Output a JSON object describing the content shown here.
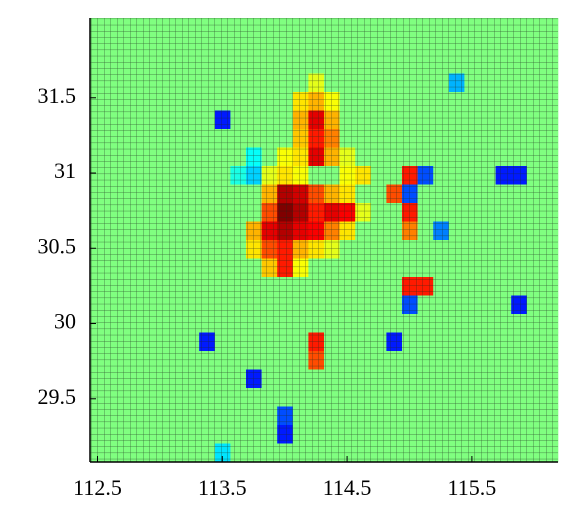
{
  "chart_data": {
    "type": "heatmap",
    "xlim": [
      112.44,
      116.19
    ],
    "ylim": [
      29.08,
      32.03
    ],
    "zlim": [
      0,
      1
    ],
    "xticks": [
      112.5,
      113.5,
      114.5,
      115.5
    ],
    "yticks": [
      29.5,
      30,
      30.5,
      31,
      31.5
    ],
    "z": [
      [
        0.5,
        0.5,
        0.5,
        0.5,
        0.5,
        0.5,
        0.5,
        0.5,
        0.5,
        0.5,
        0.5,
        0.5,
        0.5,
        0.5,
        0.5,
        0.5,
        0.5,
        0.5,
        0.5,
        0.5,
        0.5,
        0.5,
        0.5,
        0.5,
        0.5,
        0.5,
        0.5,
        0.5,
        0.5,
        0.5
      ],
      [
        0.5,
        0.5,
        0.5,
        0.5,
        0.5,
        0.5,
        0.5,
        0.5,
        0.5,
        0.5,
        0.5,
        0.5,
        0.5,
        0.5,
        0.5,
        0.5,
        0.5,
        0.5,
        0.5,
        0.5,
        0.5,
        0.5,
        0.5,
        0.5,
        0.5,
        0.5,
        0.5,
        0.5,
        0.5,
        0.5
      ],
      [
        0.5,
        0.5,
        0.5,
        0.5,
        0.5,
        0.5,
        0.5,
        0.5,
        0.5,
        0.5,
        0.5,
        0.5,
        0.5,
        0.5,
        0.5,
        0.5,
        0.5,
        0.5,
        0.5,
        0.5,
        0.5,
        0.5,
        0.5,
        0.5,
        0.5,
        0.5,
        0.5,
        0.5,
        0.5,
        0.5
      ],
      [
        0.5,
        0.5,
        0.5,
        0.5,
        0.5,
        0.5,
        0.5,
        0.5,
        0.5,
        0.5,
        0.5,
        0.5,
        0.5,
        0.5,
        0.6,
        0.5,
        0.5,
        0.5,
        0.5,
        0.5,
        0.5,
        0.5,
        0.5,
        0.3,
        0.5,
        0.5,
        0.5,
        0.5,
        0.5,
        0.5
      ],
      [
        0.5,
        0.5,
        0.5,
        0.5,
        0.5,
        0.5,
        0.5,
        0.5,
        0.5,
        0.5,
        0.5,
        0.5,
        0.5,
        0.65,
        0.7,
        0.62,
        0.5,
        0.5,
        0.5,
        0.5,
        0.5,
        0.5,
        0.5,
        0.5,
        0.5,
        0.5,
        0.5,
        0.5,
        0.5,
        0.5
      ],
      [
        0.5,
        0.5,
        0.5,
        0.5,
        0.5,
        0.5,
        0.5,
        0.5,
        0.15,
        0.5,
        0.5,
        0.5,
        0.5,
        0.7,
        0.9,
        0.7,
        0.5,
        0.5,
        0.5,
        0.5,
        0.5,
        0.5,
        0.5,
        0.5,
        0.5,
        0.5,
        0.5,
        0.5,
        0.5,
        0.5
      ],
      [
        0.5,
        0.5,
        0.5,
        0.5,
        0.5,
        0.5,
        0.5,
        0.5,
        0.5,
        0.5,
        0.5,
        0.5,
        0.5,
        0.68,
        0.85,
        0.75,
        0.5,
        0.5,
        0.5,
        0.5,
        0.5,
        0.5,
        0.5,
        0.5,
        0.5,
        0.5,
        0.5,
        0.5,
        0.5,
        0.5
      ],
      [
        0.5,
        0.5,
        0.5,
        0.5,
        0.5,
        0.5,
        0.5,
        0.5,
        0.5,
        0.5,
        0.38,
        0.5,
        0.62,
        0.65,
        0.9,
        0.7,
        0.6,
        0.5,
        0.5,
        0.5,
        0.5,
        0.5,
        0.5,
        0.5,
        0.5,
        0.5,
        0.5,
        0.5,
        0.5,
        0.5
      ],
      [
        0.5,
        0.5,
        0.5,
        0.5,
        0.5,
        0.5,
        0.5,
        0.5,
        0.5,
        0.4,
        0.33,
        0.6,
        0.65,
        0.62,
        0.5,
        0.5,
        0.62,
        0.65,
        0.5,
        0.5,
        0.85,
        0.2,
        0.5,
        0.5,
        0.5,
        0.5,
        0.15,
        0.15,
        0.5,
        0.5
      ],
      [
        0.5,
        0.5,
        0.5,
        0.5,
        0.5,
        0.5,
        0.5,
        0.5,
        0.5,
        0.5,
        0.5,
        0.7,
        0.95,
        0.92,
        0.8,
        0.7,
        0.65,
        0.5,
        0.5,
        0.8,
        0.2,
        0.5,
        0.5,
        0.5,
        0.5,
        0.5,
        0.5,
        0.5,
        0.5,
        0.5
      ],
      [
        0.5,
        0.5,
        0.5,
        0.5,
        0.5,
        0.5,
        0.5,
        0.5,
        0.5,
        0.5,
        0.5,
        0.8,
        1.0,
        0.95,
        0.85,
        0.9,
        0.88,
        0.6,
        0.5,
        0.5,
        0.85,
        0.5,
        0.5,
        0.5,
        0.5,
        0.5,
        0.5,
        0.5,
        0.5,
        0.5
      ],
      [
        0.5,
        0.5,
        0.5,
        0.5,
        0.5,
        0.5,
        0.5,
        0.5,
        0.5,
        0.5,
        0.7,
        0.9,
        0.95,
        0.9,
        0.88,
        0.75,
        0.65,
        0.5,
        0.5,
        0.5,
        0.75,
        0.5,
        0.25,
        0.5,
        0.5,
        0.5,
        0.5,
        0.5,
        0.5,
        0.5
      ],
      [
        0.5,
        0.5,
        0.5,
        0.5,
        0.5,
        0.5,
        0.5,
        0.5,
        0.5,
        0.5,
        0.65,
        0.8,
        0.85,
        0.7,
        0.65,
        0.6,
        0.5,
        0.5,
        0.5,
        0.5,
        0.5,
        0.5,
        0.5,
        0.5,
        0.5,
        0.5,
        0.5,
        0.5,
        0.5,
        0.5
      ],
      [
        0.5,
        0.5,
        0.5,
        0.5,
        0.5,
        0.5,
        0.5,
        0.5,
        0.5,
        0.5,
        0.5,
        0.68,
        0.85,
        0.62,
        0.5,
        0.5,
        0.5,
        0.5,
        0.5,
        0.5,
        0.5,
        0.5,
        0.5,
        0.5,
        0.5,
        0.5,
        0.5,
        0.5,
        0.5,
        0.5
      ],
      [
        0.5,
        0.5,
        0.5,
        0.5,
        0.5,
        0.5,
        0.5,
        0.5,
        0.5,
        0.5,
        0.5,
        0.5,
        0.5,
        0.5,
        0.5,
        0.5,
        0.5,
        0.5,
        0.5,
        0.5,
        0.85,
        0.85,
        0.5,
        0.5,
        0.5,
        0.5,
        0.5,
        0.5,
        0.5,
        0.5
      ],
      [
        0.5,
        0.5,
        0.5,
        0.5,
        0.5,
        0.5,
        0.5,
        0.5,
        0.5,
        0.5,
        0.5,
        0.5,
        0.5,
        0.5,
        0.5,
        0.5,
        0.5,
        0.5,
        0.5,
        0.5,
        0.2,
        0.5,
        0.5,
        0.5,
        0.5,
        0.5,
        0.5,
        0.15,
        0.5,
        0.5
      ],
      [
        0.5,
        0.5,
        0.5,
        0.5,
        0.5,
        0.5,
        0.5,
        0.5,
        0.5,
        0.5,
        0.5,
        0.5,
        0.5,
        0.5,
        0.5,
        0.5,
        0.5,
        0.5,
        0.5,
        0.5,
        0.5,
        0.5,
        0.5,
        0.5,
        0.5,
        0.5,
        0.5,
        0.5,
        0.5,
        0.5
      ],
      [
        0.5,
        0.5,
        0.5,
        0.5,
        0.5,
        0.5,
        0.5,
        0.15,
        0.5,
        0.5,
        0.5,
        0.5,
        0.5,
        0.5,
        0.85,
        0.5,
        0.5,
        0.5,
        0.5,
        0.15,
        0.5,
        0.5,
        0.5,
        0.5,
        0.5,
        0.5,
        0.5,
        0.5,
        0.5,
        0.5
      ],
      [
        0.5,
        0.5,
        0.5,
        0.5,
        0.5,
        0.5,
        0.5,
        0.5,
        0.5,
        0.5,
        0.5,
        0.5,
        0.5,
        0.5,
        0.8,
        0.5,
        0.5,
        0.5,
        0.5,
        0.5,
        0.5,
        0.5,
        0.5,
        0.5,
        0.5,
        0.5,
        0.5,
        0.5,
        0.5,
        0.5
      ],
      [
        0.5,
        0.5,
        0.5,
        0.5,
        0.5,
        0.5,
        0.5,
        0.5,
        0.5,
        0.5,
        0.15,
        0.5,
        0.5,
        0.5,
        0.5,
        0.5,
        0.5,
        0.5,
        0.5,
        0.5,
        0.5,
        0.5,
        0.5,
        0.5,
        0.5,
        0.5,
        0.5,
        0.5,
        0.5,
        0.5
      ],
      [
        0.5,
        0.5,
        0.5,
        0.5,
        0.5,
        0.5,
        0.5,
        0.5,
        0.5,
        0.5,
        0.5,
        0.5,
        0.5,
        0.5,
        0.5,
        0.5,
        0.5,
        0.5,
        0.5,
        0.5,
        0.5,
        0.5,
        0.5,
        0.5,
        0.5,
        0.5,
        0.5,
        0.5,
        0.5,
        0.5
      ],
      [
        0.5,
        0.5,
        0.5,
        0.5,
        0.5,
        0.5,
        0.5,
        0.5,
        0.5,
        0.5,
        0.5,
        0.5,
        0.2,
        0.5,
        0.5,
        0.5,
        0.5,
        0.5,
        0.5,
        0.5,
        0.5,
        0.5,
        0.5,
        0.5,
        0.5,
        0.5,
        0.5,
        0.5,
        0.5,
        0.5
      ],
      [
        0.5,
        0.5,
        0.5,
        0.5,
        0.5,
        0.5,
        0.5,
        0.5,
        0.5,
        0.5,
        0.5,
        0.5,
        0.15,
        0.5,
        0.5,
        0.5,
        0.5,
        0.5,
        0.5,
        0.5,
        0.5,
        0.5,
        0.5,
        0.5,
        0.5,
        0.5,
        0.5,
        0.5,
        0.5,
        0.5
      ],
      [
        0.5,
        0.5,
        0.5,
        0.5,
        0.5,
        0.5,
        0.5,
        0.5,
        0.35,
        0.5,
        0.5,
        0.5,
        0.5,
        0.5,
        0.5,
        0.5,
        0.5,
        0.5,
        0.5,
        0.5,
        0.5,
        0.5,
        0.5,
        0.5,
        0.5,
        0.5,
        0.5,
        0.5,
        0.5,
        0.5
      ]
    ]
  }
}
